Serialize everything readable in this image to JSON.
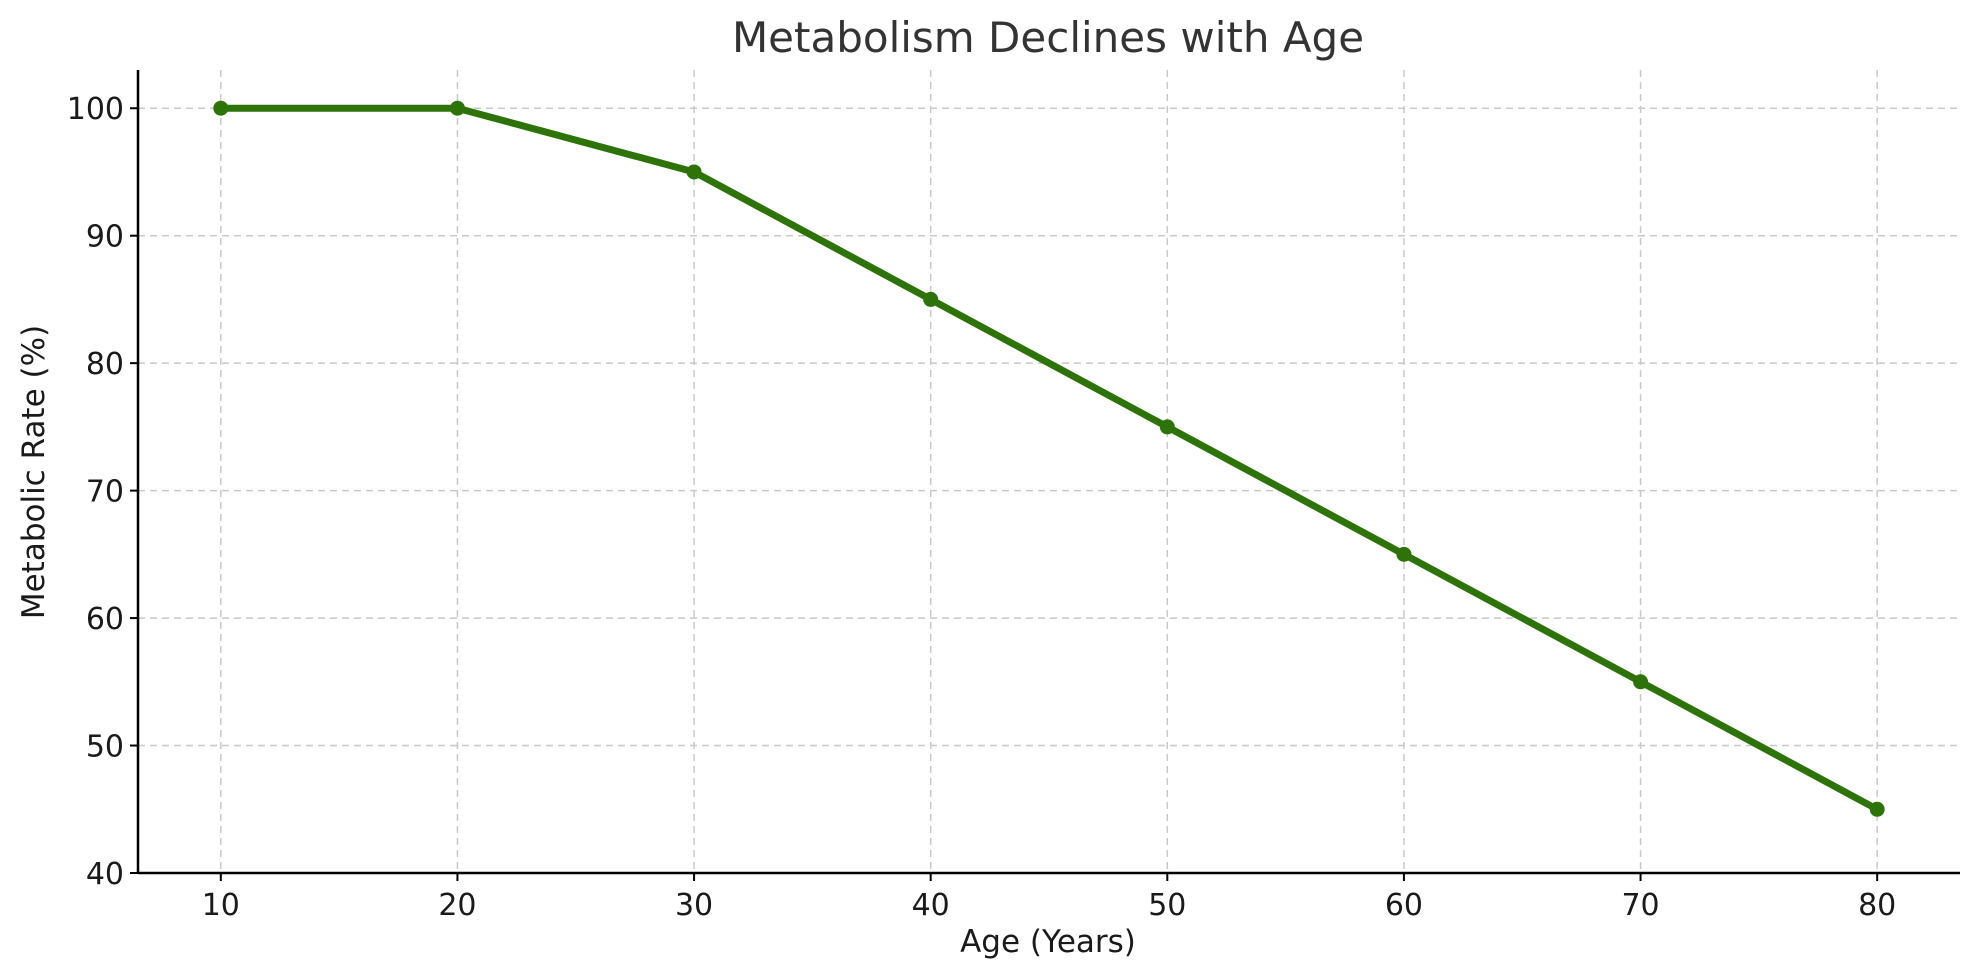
{
  "chart_data": {
    "type": "line",
    "title": "Metabolism Declines with Age",
    "xlabel": "Age (Years)",
    "ylabel": "Metabolic Rate (%)",
    "x": [
      10,
      20,
      30,
      40,
      50,
      60,
      70,
      80
    ],
    "series": [
      {
        "values": [
          100,
          100,
          95,
          85,
          75,
          65,
          55,
          45
        ],
        "color": "#2e7309"
      }
    ],
    "xlim": [
      6.5,
      83.5
    ],
    "ylim": [
      40,
      103
    ],
    "xticks": [
      10,
      20,
      30,
      40,
      50,
      60,
      70,
      80
    ],
    "yticks": [
      40,
      50,
      60,
      70,
      80,
      90,
      100
    ],
    "grid": true
  }
}
